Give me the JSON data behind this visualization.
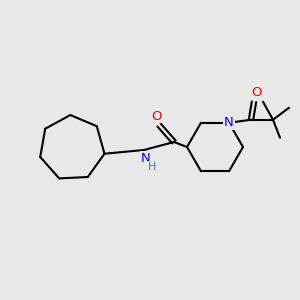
{
  "background_color": "#e8e8e8",
  "bond_color": "#000000",
  "bond_width": 1.5,
  "atom_colors": {
    "N": "#0000ee",
    "O": "#ee0000",
    "H": "#3a8a8a",
    "C": "#000000"
  },
  "fig_width": 3.0,
  "fig_height": 3.0,
  "dpi": 100
}
